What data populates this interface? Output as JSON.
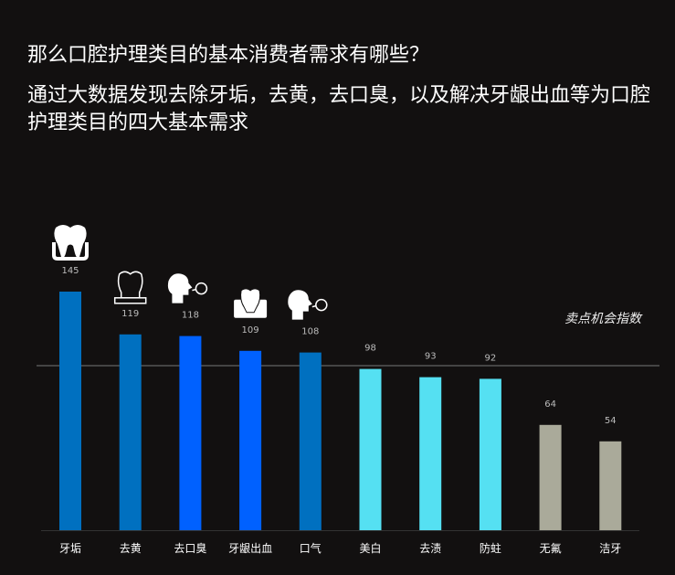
{
  "title": "那么口腔护理类目的基本消费者需求有哪些？",
  "subtitle": "通过大数据发现去除牙垢，去黄，去口臭，以及解决牙龈出血等为口腔护理类目的四大基本需求",
  "chart_data": {
    "type": "bar",
    "categories": [
      "牙垢",
      "去黄",
      "去口臭",
      "牙龈出血",
      "口气",
      "美白",
      "去渍",
      "防蛀",
      "无氟",
      "洁牙"
    ],
    "values": [
      145,
      119,
      118,
      109,
      108,
      98,
      93,
      92,
      64,
      54
    ],
    "colors": [
      "#0070c0",
      "#0070c0",
      "#0061ff",
      "#0061ff",
      "#0070c0",
      "#55e0f2",
      "#55e0f2",
      "#55e0f2",
      "#aaaa9a",
      "#aaaa9a"
    ],
    "icons": [
      "tooth-icon",
      "decayed-tooth-icon",
      "bad-breath-icon",
      "bleeding-gum-icon",
      "bad-breath-icon",
      null,
      null,
      null,
      null,
      null
    ],
    "reference_line": {
      "value": 100,
      "label": "卖点机会指数"
    },
    "ylim": [
      0,
      150
    ]
  }
}
